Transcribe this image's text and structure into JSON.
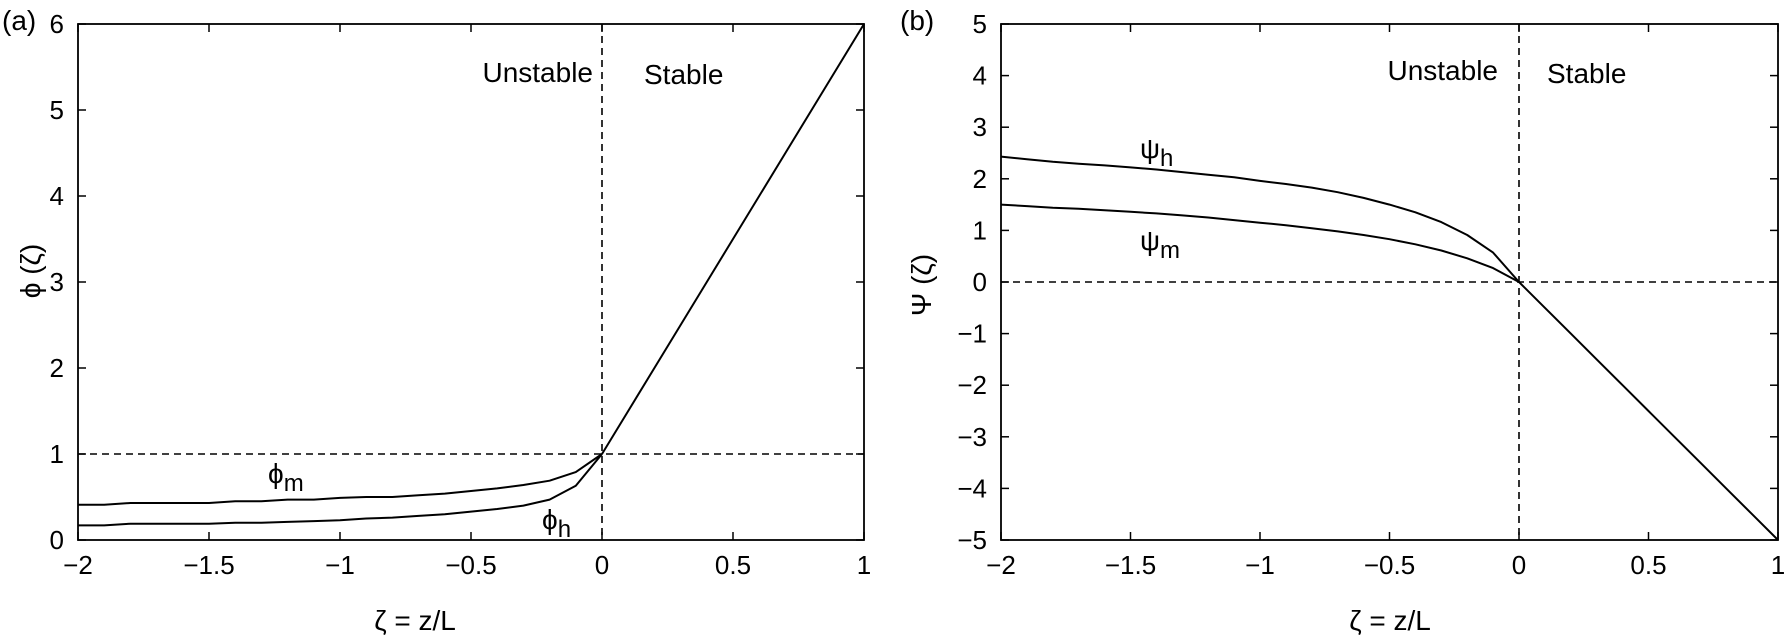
{
  "chart_data": [
    {
      "panel_label": "(a)",
      "type": "line",
      "xlabel": "ζ = z/L",
      "ylabel": "ϕ (ζ)",
      "xlim": [
        -2,
        1
      ],
      "ylim": [
        0,
        6
      ],
      "xticks": [
        "−2",
        "−1.5",
        "−1",
        "−0.5",
        "0",
        "0.5",
        "1"
      ],
      "yticks": [
        "0",
        "1",
        "2",
        "3",
        "4",
        "5",
        "6"
      ],
      "xtick_values": [
        -2,
        -1.5,
        -1,
        -0.5,
        0,
        0.5,
        1
      ],
      "ytick_values": [
        0,
        1,
        2,
        3,
        4,
        5,
        6
      ],
      "region_labels": [
        "Unstable",
        "Stable"
      ],
      "reference_lines": {
        "hline": 1,
        "vline": 0
      },
      "grid": false,
      "series": [
        {
          "name": "ϕm",
          "x": [
            -2,
            -1.9,
            -1.8,
            -1.7,
            -1.6,
            -1.5,
            -1.4,
            -1.3,
            -1.2,
            -1.1,
            -1.0,
            -0.9,
            -0.8,
            -0.7,
            -0.6,
            -0.5,
            -0.4,
            -0.3,
            -0.2,
            -0.1,
            0
          ],
          "y": [
            0.41,
            0.41,
            0.43,
            0.43,
            0.43,
            0.43,
            0.45,
            0.45,
            0.47,
            0.47,
            0.49,
            0.5,
            0.5,
            0.52,
            0.54,
            0.57,
            0.6,
            0.64,
            0.69,
            0.79,
            1.0
          ]
        },
        {
          "name": "ϕh",
          "x": [
            -2,
            -1.9,
            -1.8,
            -1.7,
            -1.6,
            -1.5,
            -1.4,
            -1.3,
            -1.2,
            -1.1,
            -1.0,
            -0.9,
            -0.8,
            -0.7,
            -0.6,
            -0.5,
            -0.4,
            -0.3,
            -0.2,
            -0.1,
            0
          ],
          "y": [
            0.17,
            0.17,
            0.19,
            0.19,
            0.19,
            0.19,
            0.2,
            0.2,
            0.21,
            0.22,
            0.23,
            0.25,
            0.26,
            0.28,
            0.3,
            0.33,
            0.36,
            0.4,
            0.47,
            0.63,
            1.0
          ]
        },
        {
          "name": "",
          "x": [
            0,
            0.1,
            0.2,
            0.3,
            0.4,
            0.5,
            0.6,
            0.7,
            0.8,
            0.9,
            1.0
          ],
          "y": [
            1.0,
            1.5,
            2.0,
            2.5,
            3.0,
            3.5,
            4.0,
            4.5,
            5.0,
            5.5,
            6.0
          ]
        }
      ]
    },
    {
      "panel_label": "(b)",
      "type": "line",
      "xlabel": "ζ = z/L",
      "ylabel": "Ψ (ζ)",
      "xlim": [
        -2,
        1
      ],
      "ylim": [
        -5,
        5
      ],
      "xticks": [
        "−2",
        "−1.5",
        "−1",
        "−0.5",
        "0",
        "0.5",
        "1"
      ],
      "yticks": [
        "−5",
        "−4",
        "−3",
        "−2",
        "−1",
        "0",
        "1",
        "2",
        "3",
        "4",
        "5"
      ],
      "xtick_values": [
        -2,
        -1.5,
        -1,
        -0.5,
        0,
        0.5,
        1
      ],
      "ytick_values": [
        -5,
        -4,
        -3,
        -2,
        -1,
        0,
        1,
        2,
        3,
        4,
        5
      ],
      "region_labels": [
        "Unstable",
        "Stable"
      ],
      "reference_lines": {
        "hline": 0,
        "vline": 0
      },
      "grid": false,
      "series": [
        {
          "name": "ψh",
          "x": [
            -2,
            -1.9,
            -1.8,
            -1.7,
            -1.6,
            -1.5,
            -1.4,
            -1.3,
            -1.2,
            -1.1,
            -1.0,
            -0.9,
            -0.8,
            -0.7,
            -0.6,
            -0.5,
            -0.4,
            -0.3,
            -0.2,
            -0.1,
            0
          ],
          "y": [
            2.43,
            2.38,
            2.33,
            2.29,
            2.26,
            2.22,
            2.18,
            2.13,
            2.08,
            2.03,
            1.96,
            1.9,
            1.83,
            1.74,
            1.63,
            1.5,
            1.35,
            1.16,
            0.91,
            0.57,
            0.0
          ]
        },
        {
          "name": "ψm",
          "x": [
            -2,
            -1.9,
            -1.8,
            -1.7,
            -1.6,
            -1.5,
            -1.4,
            -1.3,
            -1.2,
            -1.1,
            -1.0,
            -0.9,
            -0.8,
            -0.7,
            -0.6,
            -0.5,
            -0.4,
            -0.3,
            -0.2,
            -0.1,
            0
          ],
          "y": [
            1.5,
            1.47,
            1.44,
            1.42,
            1.39,
            1.36,
            1.33,
            1.29,
            1.25,
            1.2,
            1.15,
            1.1,
            1.04,
            0.98,
            0.91,
            0.83,
            0.73,
            0.61,
            0.46,
            0.27,
            0.0
          ]
        },
        {
          "name": "",
          "x": [
            0,
            0.1,
            0.2,
            0.3,
            0.4,
            0.5,
            0.6,
            0.7,
            0.8,
            0.9,
            1.0
          ],
          "y": [
            0.0,
            -0.5,
            -1.0,
            -1.5,
            -2.0,
            -2.5,
            -3.0,
            -3.5,
            -4.0,
            -4.5,
            -5.0
          ]
        }
      ]
    }
  ]
}
